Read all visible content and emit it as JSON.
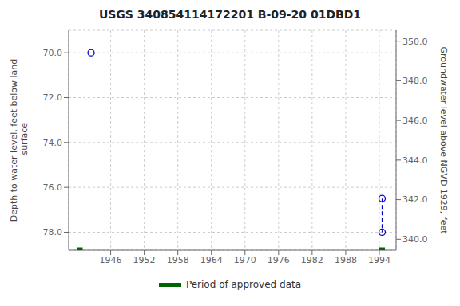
{
  "chart_data": {
    "type": "scatter",
    "title": "USGS 340854114172201 B-09-20 01DBD1",
    "ylabel": "Depth to water level, feet below land\n surface",
    "y2label": "Groundwater level above NGVD 1929, feet",
    "xlim": [
      1938.5,
      1997.0
    ],
    "xticks": [
      1946,
      1952,
      1958,
      1964,
      1970,
      1976,
      1982,
      1988,
      1994
    ],
    "ylim": [
      78.8,
      69.0
    ],
    "yticks": [
      {
        "value": 70.0,
        "label": "70.0"
      },
      {
        "value": 72.0,
        "label": "72.0"
      },
      {
        "value": 74.0,
        "label": "74.0"
      },
      {
        "value": 76.0,
        "label": "76.0"
      },
      {
        "value": 78.0,
        "label": "78.0"
      }
    ],
    "y2lim": [
      339.45,
      350.55
    ],
    "y2ticks": [
      {
        "value": 340.0,
        "label": "340.0"
      },
      {
        "value": 342.0,
        "label": "342.0"
      },
      {
        "value": 344.0,
        "label": "344.0"
      },
      {
        "value": 346.0,
        "label": "346.0"
      },
      {
        "value": 348.0,
        "label": "348.0"
      },
      {
        "value": 350.0,
        "label": "350.0"
      }
    ],
    "grid": true,
    "legend": "bottom",
    "series": [
      {
        "color": "#0000cc",
        "marker": "circle",
        "x": [
          1942.5,
          1994.5,
          1994.5
        ],
        "values": [
          70.0,
          76.5,
          78.0
        ]
      },
      {
        "type": "line",
        "line_style": "dashed",
        "color": "#0000cc",
        "x": [
          1994.5,
          1994.5
        ],
        "values": [
          76.5,
          78.0
        ]
      },
      {
        "name": "Period of approved data",
        "color": "#006400",
        "marker": "square",
        "x": [
          1940.5,
          1994.5
        ],
        "values": [
          78.8,
          78.8
        ]
      }
    ]
  }
}
